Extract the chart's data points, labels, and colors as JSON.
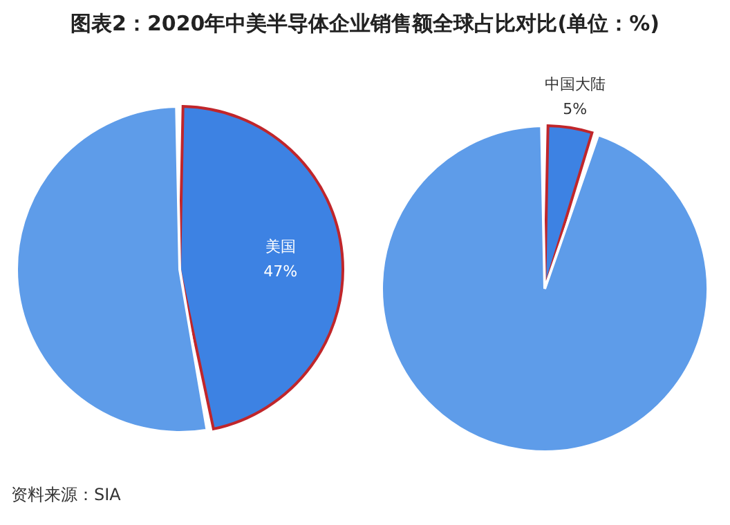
{
  "chart_data": [
    {
      "type": "pie",
      "title": "图表2：2020年中美半导体企业销售额全球占比对比(单位：%)",
      "categories": [
        "美国",
        null
      ],
      "values": [
        47,
        53
      ],
      "colors": [
        "#3d82e3",
        "#5e9ce9"
      ],
      "value_labels": [
        "47%",
        null
      ]
    },
    {
      "type": "pie",
      "categories": [
        "中国大陆",
        null
      ],
      "values": [
        5,
        95
      ],
      "colors": [
        "#3d82e3",
        "#5e9ce9"
      ],
      "value_labels": [
        "5%",
        null
      ],
      "annotations": [
        "资料来源：SIA"
      ]
    }
  ]
}
